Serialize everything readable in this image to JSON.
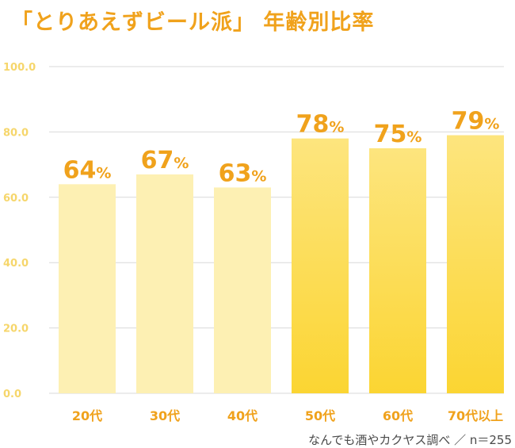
{
  "chart_data": {
    "type": "bar",
    "title": "「とりあえずビール派」 年齢別比率",
    "categories": [
      "20代",
      "30代",
      "40代",
      "50代",
      "60代",
      "70代以上"
    ],
    "values": [
      64,
      67,
      63,
      78,
      75,
      79
    ],
    "value_labels": [
      "64",
      "67",
      "63",
      "78",
      "75",
      "79"
    ],
    "value_suffix": "%",
    "ylim": [
      0,
      100
    ],
    "yticks": [
      "0.0",
      "20.0",
      "40.0",
      "60.0",
      "80.0",
      "100.0"
    ],
    "grid": true,
    "xlabel": "",
    "ylabel": "",
    "colors": {
      "light": "#fdf0b3",
      "bright_top": "#fde57e",
      "bright_bottom": "#fbd532",
      "label": "#f0a21c",
      "tick": "#f6d66b",
      "grid": "#d9d9d9"
    },
    "highlight_from_index": 3
  },
  "source": "なんでも酒やカクヤス調べ ／ n＝255"
}
